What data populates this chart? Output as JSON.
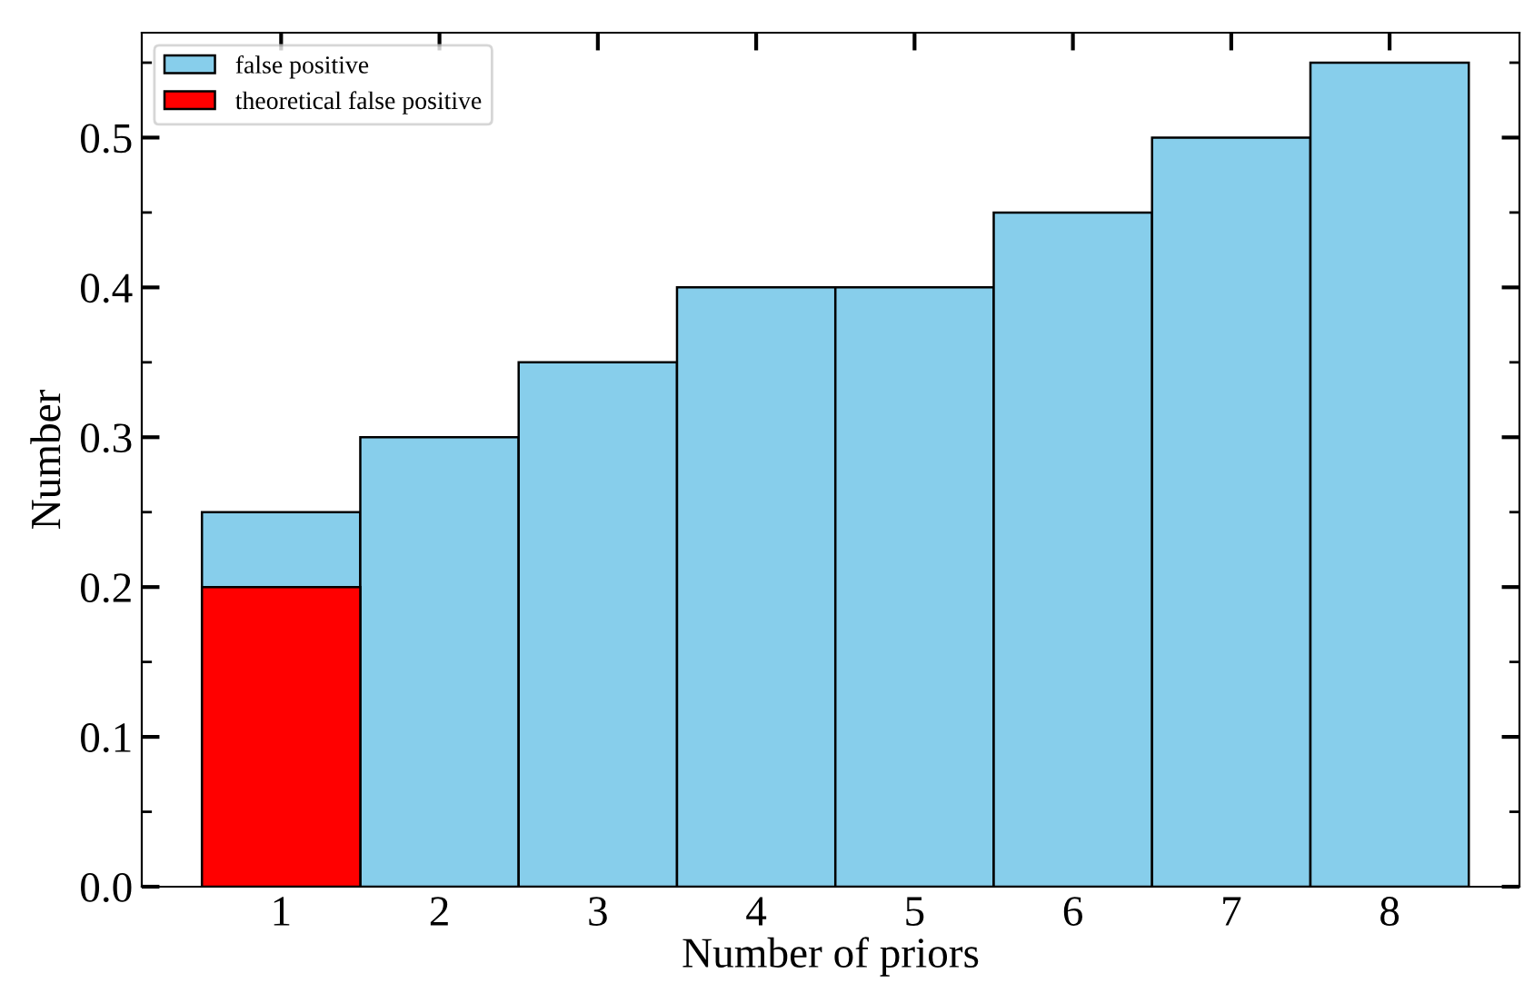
{
  "chart_data": {
    "type": "bar",
    "xlabel": "Number of priors",
    "ylabel": "Number",
    "x": [
      1,
      2,
      3,
      4,
      5,
      6,
      7,
      8
    ],
    "series": [
      {
        "name": "false positive",
        "color": "#87ceeb",
        "values": [
          0.25,
          0.3,
          0.35,
          0.4,
          0.4,
          0.45,
          0.5,
          0.55
        ]
      },
      {
        "name": "theoretical false positive",
        "color": "#ff0000",
        "values": [
          0.2,
          null,
          null,
          null,
          null,
          null,
          null,
          null
        ]
      }
    ],
    "xlim": [
      0.12,
      8.82
    ],
    "xticks": [
      1,
      2,
      3,
      4,
      5,
      6,
      7,
      8
    ],
    "ylim": [
      0,
      0.57
    ],
    "yticks": [
      {
        "value": 0,
        "label": "0.0"
      },
      0.1,
      0.2,
      0.3,
      0.4,
      0.5
    ],
    "grid": false,
    "legend": "top left"
  }
}
